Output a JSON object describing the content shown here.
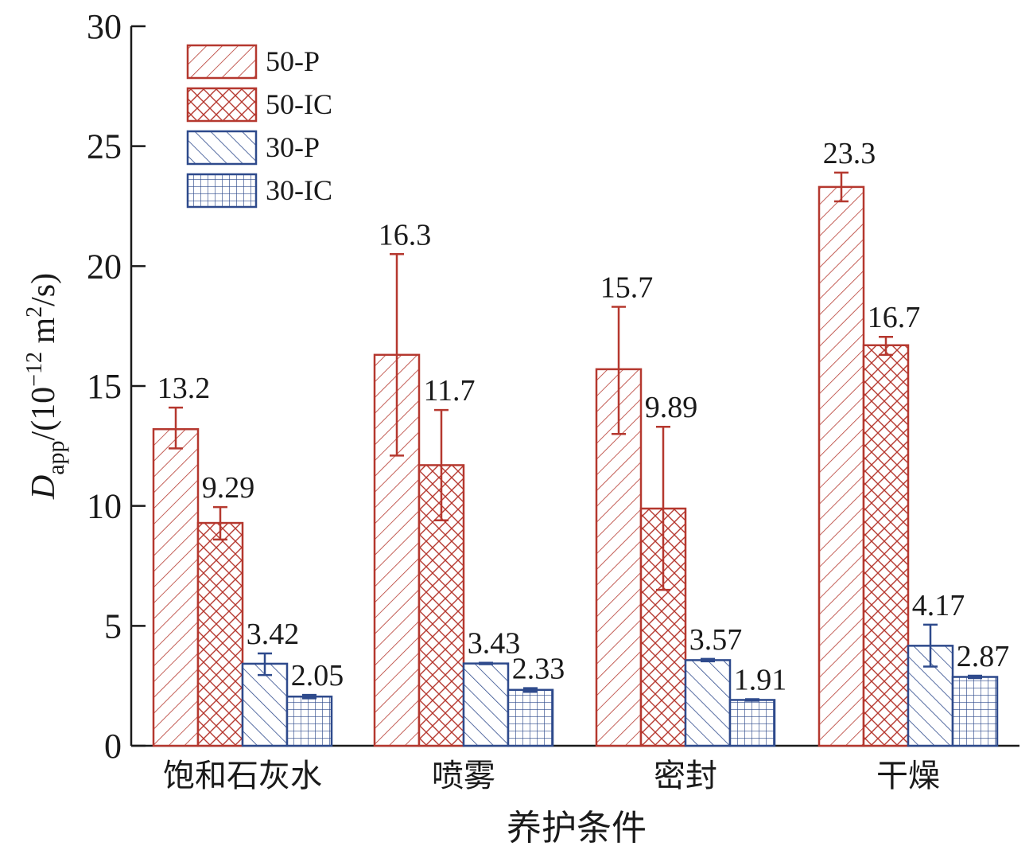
{
  "chart_data": {
    "type": "bar",
    "categories": [
      "饱和石灰水",
      "喷雾",
      "密封",
      "干燥"
    ],
    "series": [
      {
        "name": "50-P",
        "values": [
          13.2,
          16.3,
          15.7,
          23.3
        ],
        "err_low": [
          12.4,
          12.1,
          13.0,
          22.7
        ],
        "err_high": [
          14.1,
          20.5,
          18.3,
          23.9
        ],
        "labels": [
          "13.2",
          "16.3",
          "15.7",
          "23.3"
        ],
        "color": "#b5382f",
        "pattern": "diag-right"
      },
      {
        "name": "50-IC",
        "values": [
          9.29,
          11.7,
          9.89,
          16.7
        ],
        "err_low": [
          8.6,
          9.4,
          6.5,
          16.3
        ],
        "err_high": [
          9.95,
          14.0,
          13.3,
          17.05
        ],
        "labels": [
          "9.29",
          "11.7",
          "9.89",
          "16.7"
        ],
        "color": "#b5382f",
        "pattern": "crosshatch"
      },
      {
        "name": "30-P",
        "values": [
          3.42,
          3.43,
          3.57,
          4.17
        ],
        "err_low": [
          2.95,
          3.4,
          3.52,
          3.3
        ],
        "err_high": [
          3.85,
          3.46,
          3.62,
          5.05
        ],
        "labels": [
          "3.42",
          "3.43",
          "3.57",
          "4.17"
        ],
        "color": "#2e4a8c",
        "pattern": "diag-left"
      },
      {
        "name": "30-IC",
        "values": [
          2.05,
          2.33,
          1.91,
          2.87
        ],
        "err_low": [
          1.98,
          2.25,
          1.88,
          2.82
        ],
        "err_high": [
          2.12,
          2.4,
          1.94,
          2.92
        ],
        "labels": [
          "2.05",
          "2.33",
          "1.91",
          "2.87"
        ],
        "color": "#2e4a8c",
        "pattern": "grid"
      }
    ],
    "yticks": [
      "0",
      "5",
      "10",
      "15",
      "20",
      "25",
      "30"
    ],
    "ylim": [
      0,
      30
    ],
    "xlabel": "养护条件",
    "ylabel": {
      "symbol": "D",
      "subscript": "app",
      "unit_prefix": "/(10",
      "exponent": "−12",
      "unit_mid": " m",
      "unit_power": "2",
      "unit_suffix": "/s)"
    },
    "legend_position": "top-left",
    "grid": false
  }
}
